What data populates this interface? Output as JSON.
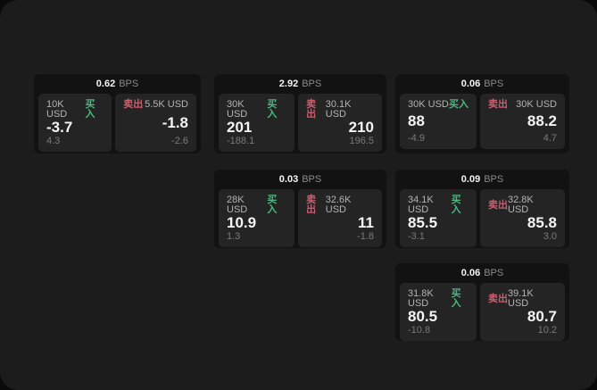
{
  "labels": {
    "bps": "BPS",
    "buy": "买入",
    "sell": "卖出"
  },
  "colors": {
    "page_bg": "#0a0a0a",
    "board_bg": "#1c1c1d",
    "card_bg": "#121212",
    "tile_bg": "#242425",
    "buy_green": "#4bb87e",
    "sell_rose": "#c95f6e"
  },
  "cards": [
    {
      "bps_value": "0.62",
      "buy": {
        "amount": "10K USD",
        "price": "-3.7",
        "delta": "4.3"
      },
      "sell": {
        "amount": "5.5K USD",
        "price": "-1.8",
        "delta": "-2.6"
      }
    },
    {
      "bps_value": "2.92",
      "buy": {
        "amount": "30K USD",
        "price": "201",
        "delta": "-188.1"
      },
      "sell": {
        "amount": "30.1K USD",
        "price": "210",
        "delta": "196.5"
      }
    },
    {
      "bps_value": "0.06",
      "buy": {
        "amount": "30K USD",
        "price": "88",
        "delta": "-4.9"
      },
      "sell": {
        "amount": "30K USD",
        "price": "88.2",
        "delta": "4.7"
      }
    },
    {
      "bps_value": "0.03",
      "buy": {
        "amount": "28K USD",
        "price": "10.9",
        "delta": "1.3"
      },
      "sell": {
        "amount": "32.6K USD",
        "price": "11",
        "delta": "-1.8"
      }
    },
    {
      "bps_value": "0.09",
      "buy": {
        "amount": "34.1K USD",
        "price": "85.5",
        "delta": "-3.1"
      },
      "sell": {
        "amount": "32.8K USD",
        "price": "85.8",
        "delta": "3.0"
      }
    },
    {
      "bps_value": "0.06",
      "buy": {
        "amount": "31.8K USD",
        "price": "80.5",
        "delta": "-10.8"
      },
      "sell": {
        "amount": "39.1K USD",
        "price": "80.7",
        "delta": "10.2"
      }
    }
  ]
}
